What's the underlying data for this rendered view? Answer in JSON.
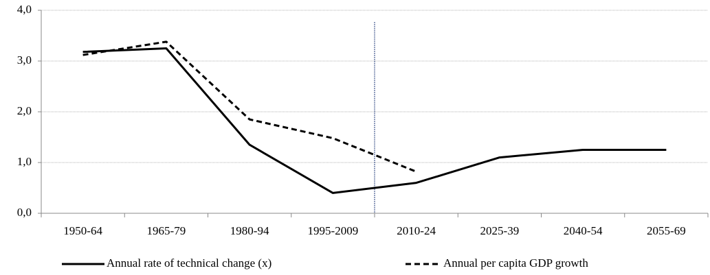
{
  "chart_data": {
    "type": "line",
    "categories": [
      "1950-64",
      "1965-79",
      "1980-94",
      "1995-2009",
      "2010-24",
      "2025-39",
      "2040-54",
      "2055-69"
    ],
    "series": [
      {
        "name": "Annual rate of technical change (x)",
        "color": "#000000",
        "dash": false,
        "values": [
          3.18,
          3.25,
          1.35,
          0.4,
          0.6,
          1.1,
          1.25,
          1.25
        ]
      },
      {
        "name": "Annual per capita GDP growth",
        "color": "#000000",
        "dash": true,
        "values": [
          3.12,
          3.38,
          1.85,
          1.48,
          0.82,
          null,
          null,
          null
        ]
      }
    ],
    "ylim": [
      0,
      4
    ],
    "yticks": [
      {
        "value": 0,
        "label": "0,0"
      },
      {
        "value": 1,
        "label": "1,0"
      },
      {
        "value": 2,
        "label": "2,0"
      },
      {
        "value": 3,
        "label": "3,0"
      },
      {
        "value": 4,
        "label": "4,0"
      }
    ],
    "grid": true,
    "legend": "bottom"
  }
}
